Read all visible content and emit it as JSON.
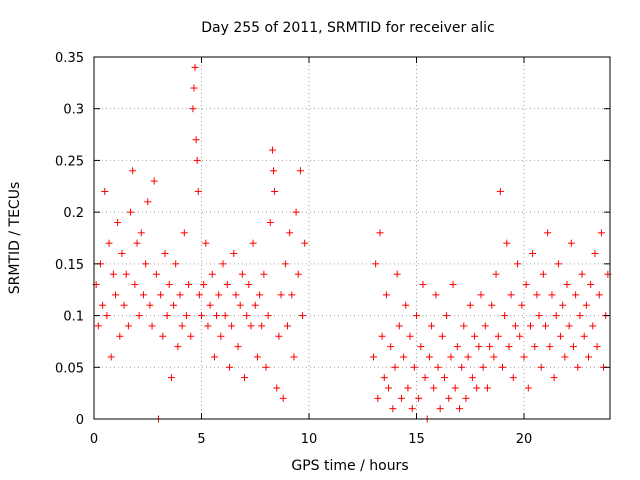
{
  "chart_data": {
    "type": "scatter",
    "title": "Day 255 of 2011, SRMTID for receiver alic",
    "xlabel": "GPS time / hours",
    "ylabel": "SRMTID / TECUs",
    "xlim": [
      0,
      24
    ],
    "ylim": [
      0,
      0.35
    ],
    "xticks": [
      0,
      5,
      10,
      15,
      20
    ],
    "xtick_labels": [
      "0",
      "5",
      "10",
      "15",
      "20"
    ],
    "yticks": [
      0,
      0.05,
      0.1,
      0.15,
      0.2,
      0.25,
      0.3,
      0.35
    ],
    "ytick_labels": [
      "0",
      "0.05",
      "0.1",
      "0.15",
      "0.2",
      "0.25",
      "0.3",
      "0.35"
    ],
    "grid": true,
    "marker": "+",
    "color": "#ff0000",
    "series": [
      {
        "name": "SRMTID",
        "points": [
          [
            0.1,
            0.13
          ],
          [
            0.2,
            0.09
          ],
          [
            0.3,
            0.15
          ],
          [
            0.4,
            0.11
          ],
          [
            0.5,
            0.22
          ],
          [
            0.6,
            0.1
          ],
          [
            0.7,
            0.17
          ],
          [
            0.8,
            0.06
          ],
          [
            0.9,
            0.14
          ],
          [
            1.0,
            0.12
          ],
          [
            1.1,
            0.19
          ],
          [
            1.2,
            0.08
          ],
          [
            1.3,
            0.16
          ],
          [
            1.4,
            0.11
          ],
          [
            1.5,
            0.14
          ],
          [
            1.6,
            0.09
          ],
          [
            1.7,
            0.2
          ],
          [
            1.8,
            0.24
          ],
          [
            1.9,
            0.13
          ],
          [
            2.0,
            0.17
          ],
          [
            2.1,
            0.1
          ],
          [
            2.2,
            0.18
          ],
          [
            2.3,
            0.12
          ],
          [
            2.4,
            0.15
          ],
          [
            2.5,
            0.21
          ],
          [
            2.6,
            0.11
          ],
          [
            2.7,
            0.09
          ],
          [
            2.8,
            0.23
          ],
          [
            2.9,
            0.14
          ],
          [
            3.0,
            0.0
          ],
          [
            3.1,
            0.12
          ],
          [
            3.2,
            0.08
          ],
          [
            3.3,
            0.16
          ],
          [
            3.4,
            0.1
          ],
          [
            3.5,
            0.13
          ],
          [
            3.6,
            0.04
          ],
          [
            3.7,
            0.11
          ],
          [
            3.8,
            0.15
          ],
          [
            3.9,
            0.07
          ],
          [
            4.0,
            0.12
          ],
          [
            4.1,
            0.09
          ],
          [
            4.2,
            0.18
          ],
          [
            4.3,
            0.1
          ],
          [
            4.4,
            0.13
          ],
          [
            4.5,
            0.08
          ],
          [
            4.6,
            0.3
          ],
          [
            4.65,
            0.32
          ],
          [
            4.7,
            0.34
          ],
          [
            4.75,
            0.27
          ],
          [
            4.8,
            0.25
          ],
          [
            4.85,
            0.22
          ],
          [
            4.9,
            0.12
          ],
          [
            5.0,
            0.1
          ],
          [
            5.1,
            0.13
          ],
          [
            5.2,
            0.17
          ],
          [
            5.3,
            0.09
          ],
          [
            5.4,
            0.11
          ],
          [
            5.5,
            0.14
          ],
          [
            5.6,
            0.06
          ],
          [
            5.7,
            0.1
          ],
          [
            5.8,
            0.12
          ],
          [
            5.9,
            0.08
          ],
          [
            6.0,
            0.15
          ],
          [
            6.1,
            0.1
          ],
          [
            6.2,
            0.13
          ],
          [
            6.3,
            0.05
          ],
          [
            6.4,
            0.09
          ],
          [
            6.5,
            0.16
          ],
          [
            6.6,
            0.12
          ],
          [
            6.7,
            0.07
          ],
          [
            6.8,
            0.11
          ],
          [
            6.9,
            0.14
          ],
          [
            7.0,
            0.04
          ],
          [
            7.1,
            0.1
          ],
          [
            7.2,
            0.13
          ],
          [
            7.3,
            0.09
          ],
          [
            7.4,
            0.17
          ],
          [
            7.5,
            0.11
          ],
          [
            7.6,
            0.06
          ],
          [
            7.7,
            0.12
          ],
          [
            7.8,
            0.09
          ],
          [
            7.9,
            0.14
          ],
          [
            8.0,
            0.05
          ],
          [
            8.1,
            0.1
          ],
          [
            8.2,
            0.19
          ],
          [
            8.3,
            0.26
          ],
          [
            8.35,
            0.24
          ],
          [
            8.4,
            0.22
          ],
          [
            8.5,
            0.03
          ],
          [
            8.6,
            0.08
          ],
          [
            8.7,
            0.12
          ],
          [
            8.8,
            0.02
          ],
          [
            8.9,
            0.15
          ],
          [
            9.0,
            0.09
          ],
          [
            9.1,
            0.18
          ],
          [
            9.2,
            0.12
          ],
          [
            9.3,
            0.06
          ],
          [
            9.4,
            0.2
          ],
          [
            9.5,
            0.14
          ],
          [
            9.6,
            0.24
          ],
          [
            9.7,
            0.1
          ],
          [
            9.8,
            0.17
          ],
          [
            13.0,
            0.06
          ],
          [
            13.1,
            0.15
          ],
          [
            13.2,
            0.02
          ],
          [
            13.3,
            0.18
          ],
          [
            13.4,
            0.08
          ],
          [
            13.5,
            0.04
          ],
          [
            13.6,
            0.12
          ],
          [
            13.7,
            0.03
          ],
          [
            13.8,
            0.07
          ],
          [
            13.9,
            0.01
          ],
          [
            14.0,
            0.05
          ],
          [
            14.1,
            0.14
          ],
          [
            14.2,
            0.09
          ],
          [
            14.3,
            0.02
          ],
          [
            14.4,
            0.06
          ],
          [
            14.5,
            0.11
          ],
          [
            14.6,
            0.03
          ],
          [
            14.7,
            0.08
          ],
          [
            14.8,
            0.01
          ],
          [
            14.9,
            0.05
          ],
          [
            15.0,
            0.1
          ],
          [
            15.1,
            0.02
          ],
          [
            15.2,
            0.07
          ],
          [
            15.3,
            0.13
          ],
          [
            15.4,
            0.04
          ],
          [
            15.5,
            0.0
          ],
          [
            15.6,
            0.06
          ],
          [
            15.7,
            0.09
          ],
          [
            15.8,
            0.03
          ],
          [
            15.9,
            0.12
          ],
          [
            16.0,
            0.05
          ],
          [
            16.1,
            0.01
          ],
          [
            16.2,
            0.08
          ],
          [
            16.3,
            0.04
          ],
          [
            16.4,
            0.1
          ],
          [
            16.5,
            0.02
          ],
          [
            16.6,
            0.06
          ],
          [
            16.7,
            0.13
          ],
          [
            16.8,
            0.03
          ],
          [
            16.9,
            0.07
          ],
          [
            17.0,
            0.01
          ],
          [
            17.1,
            0.05
          ],
          [
            17.2,
            0.09
          ],
          [
            17.3,
            0.02
          ],
          [
            17.4,
            0.06
          ],
          [
            17.5,
            0.11
          ],
          [
            17.6,
            0.04
          ],
          [
            17.7,
            0.08
          ],
          [
            17.8,
            0.03
          ],
          [
            17.9,
            0.07
          ],
          [
            18.0,
            0.12
          ],
          [
            18.1,
            0.05
          ],
          [
            18.2,
            0.09
          ],
          [
            18.3,
            0.03
          ],
          [
            18.4,
            0.07
          ],
          [
            18.5,
            0.11
          ],
          [
            18.6,
            0.06
          ],
          [
            18.7,
            0.14
          ],
          [
            18.8,
            0.08
          ],
          [
            18.9,
            0.22
          ],
          [
            19.0,
            0.05
          ],
          [
            19.1,
            0.1
          ],
          [
            19.2,
            0.17
          ],
          [
            19.3,
            0.07
          ],
          [
            19.4,
            0.12
          ],
          [
            19.5,
            0.04
          ],
          [
            19.6,
            0.09
          ],
          [
            19.7,
            0.15
          ],
          [
            19.8,
            0.08
          ],
          [
            19.9,
            0.11
          ],
          [
            20.0,
            0.06
          ],
          [
            20.1,
            0.13
          ],
          [
            20.2,
            0.03
          ],
          [
            20.3,
            0.09
          ],
          [
            20.4,
            0.16
          ],
          [
            20.5,
            0.07
          ],
          [
            20.6,
            0.12
          ],
          [
            20.7,
            0.1
          ],
          [
            20.8,
            0.05
          ],
          [
            20.9,
            0.14
          ],
          [
            21.0,
            0.09
          ],
          [
            21.1,
            0.18
          ],
          [
            21.2,
            0.07
          ],
          [
            21.3,
            0.12
          ],
          [
            21.4,
            0.04
          ],
          [
            21.5,
            0.1
          ],
          [
            21.6,
            0.15
          ],
          [
            21.7,
            0.08
          ],
          [
            21.8,
            0.11
          ],
          [
            21.9,
            0.06
          ],
          [
            22.0,
            0.13
          ],
          [
            22.1,
            0.09
          ],
          [
            22.2,
            0.17
          ],
          [
            22.3,
            0.07
          ],
          [
            22.4,
            0.12
          ],
          [
            22.5,
            0.05
          ],
          [
            22.6,
            0.1
          ],
          [
            22.7,
            0.14
          ],
          [
            22.8,
            0.08
          ],
          [
            22.9,
            0.11
          ],
          [
            23.0,
            0.06
          ],
          [
            23.1,
            0.13
          ],
          [
            23.2,
            0.09
          ],
          [
            23.3,
            0.16
          ],
          [
            23.4,
            0.07
          ],
          [
            23.5,
            0.12
          ],
          [
            23.6,
            0.18
          ],
          [
            23.7,
            0.05
          ],
          [
            23.8,
            0.1
          ],
          [
            23.9,
            0.14
          ]
        ]
      }
    ]
  }
}
